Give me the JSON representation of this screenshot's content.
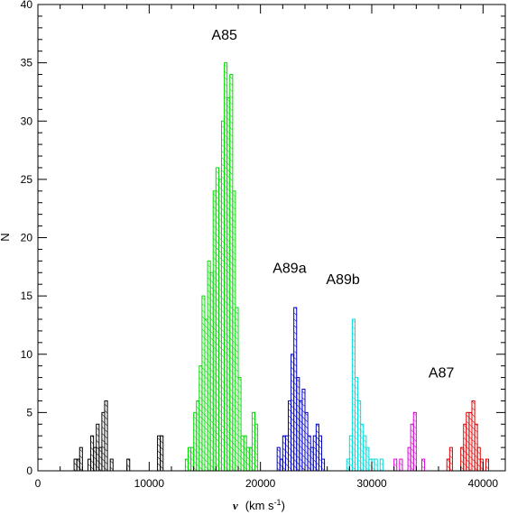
{
  "chart_data": {
    "type": "bar",
    "style": "hatched histogram",
    "xlabel_symbol": "v",
    "xlabel_units": "(km s",
    "xlabel_exp": "-1",
    "xlabel_close": ")",
    "ylabel": "N",
    "xlim": [
      0,
      42000
    ],
    "ylim": [
      0,
      40
    ],
    "x_ticks": [
      0,
      10000,
      20000,
      30000,
      40000
    ],
    "x_tick_labels": [
      "0",
      "10000",
      "20000",
      "30000",
      "40000"
    ],
    "y_ticks": [
      0,
      5,
      10,
      15,
      20,
      25,
      30,
      35,
      40
    ],
    "y_tick_labels": [
      "0",
      "5",
      "10",
      "15",
      "20",
      "25",
      "30",
      "35",
      "40"
    ],
    "bin_width": 250,
    "annotations": [
      {
        "text": "A85",
        "x": 15600,
        "y": 37
      },
      {
        "text": "A89a",
        "x": 21100,
        "y": 17
      },
      {
        "text": "A89b",
        "x": 25900,
        "y": 16
      },
      {
        "text": "A87",
        "x": 35100,
        "y": 8
      }
    ],
    "series": [
      {
        "color": "#000000",
        "bins": [
          [
            3250,
            1
          ],
          [
            3500,
            1
          ],
          [
            3750,
            2
          ],
          [
            4500,
            1
          ],
          [
            4750,
            3
          ],
          [
            5000,
            2
          ],
          [
            5250,
            4
          ],
          [
            5500,
            2
          ],
          [
            5750,
            5
          ],
          [
            6000,
            6
          ],
          [
            6500,
            1
          ],
          [
            8000,
            1
          ],
          [
            10750,
            3
          ],
          [
            11000,
            3
          ]
        ]
      },
      {
        "color": "#00dd00",
        "bins": [
          [
            13250,
            1
          ],
          [
            13500,
            2
          ],
          [
            13750,
            2
          ],
          [
            14000,
            5
          ],
          [
            14250,
            6
          ],
          [
            14500,
            9
          ],
          [
            14750,
            15
          ],
          [
            15000,
            13
          ],
          [
            15250,
            18
          ],
          [
            15500,
            17
          ],
          [
            15750,
            24
          ],
          [
            16000,
            26
          ],
          [
            16250,
            25
          ],
          [
            16500,
            30
          ],
          [
            16750,
            35
          ],
          [
            17000,
            32
          ],
          [
            17250,
            34
          ],
          [
            17500,
            24
          ],
          [
            17750,
            14
          ],
          [
            18000,
            8
          ],
          [
            18250,
            3
          ],
          [
            18500,
            3
          ],
          [
            18750,
            2
          ],
          [
            19000,
            2
          ],
          [
            19250,
            5
          ],
          [
            19500,
            4
          ]
        ]
      },
      {
        "color": "#0000cc",
        "bins": [
          [
            21500,
            2
          ],
          [
            21750,
            1
          ],
          [
            22000,
            3
          ],
          [
            22250,
            3
          ],
          [
            22500,
            6
          ],
          [
            22750,
            10
          ],
          [
            23000,
            14
          ],
          [
            23250,
            8
          ],
          [
            23500,
            6
          ],
          [
            23750,
            7
          ],
          [
            24000,
            5
          ],
          [
            24250,
            3
          ],
          [
            24500,
            2
          ],
          [
            24750,
            3
          ],
          [
            25000,
            4
          ],
          [
            25250,
            3
          ],
          [
            25500,
            1
          ]
        ]
      },
      {
        "color": "#00dddd",
        "bins": [
          [
            27750,
            1
          ],
          [
            28000,
            3
          ],
          [
            28250,
            13
          ],
          [
            28500,
            8
          ],
          [
            28750,
            6
          ],
          [
            29000,
            4
          ],
          [
            29250,
            3
          ],
          [
            29500,
            2
          ],
          [
            29750,
            1
          ],
          [
            30000,
            1
          ],
          [
            30250,
            1
          ],
          [
            30750,
            1
          ]
        ]
      },
      {
        "color": "#dd00dd",
        "bins": [
          [
            32000,
            1
          ],
          [
            32500,
            1
          ],
          [
            33250,
            2
          ],
          [
            33500,
            4
          ],
          [
            33750,
            5
          ],
          [
            34500,
            1
          ]
        ]
      },
      {
        "color": "#dd0000",
        "bins": [
          [
            36750,
            1
          ],
          [
            37000,
            2
          ],
          [
            38000,
            2
          ],
          [
            38250,
            4
          ],
          [
            38500,
            5
          ],
          [
            38750,
            5
          ],
          [
            39000,
            6
          ],
          [
            39250,
            4
          ],
          [
            39500,
            2
          ],
          [
            39750,
            1
          ],
          [
            40250,
            1
          ]
        ]
      }
    ]
  }
}
